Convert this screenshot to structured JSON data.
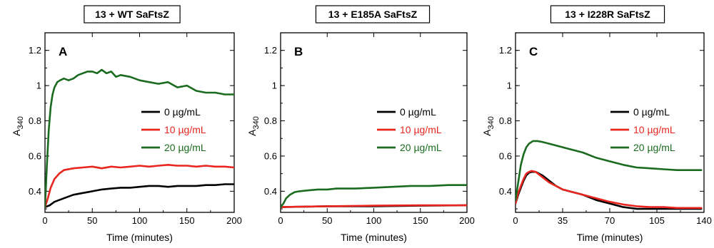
{
  "chart_data": [
    {
      "type": "line",
      "title": "13 + WT SaFtsZ",
      "panel_label": "A",
      "xlabel": "Time (minutes)",
      "ylabel_main": "A",
      "ylabel_sub": "340",
      "xlim": [
        0,
        200
      ],
      "ylim": [
        0.28,
        1.3
      ],
      "xticks": [
        0,
        50,
        100,
        150,
        200
      ],
      "yticks": [
        0.4,
        0.6,
        0.8,
        1.0,
        1.2
      ],
      "ytick_labels": [
        "0.4",
        "0.6",
        "0.8",
        "1",
        "1.2"
      ],
      "series": [
        {
          "name": "0 µg/mL",
          "color": "#000000",
          "x": [
            0,
            5,
            10,
            20,
            30,
            40,
            50,
            60,
            70,
            80,
            90,
            100,
            110,
            120,
            130,
            140,
            150,
            160,
            170,
            180,
            190,
            200
          ],
          "y": [
            0.31,
            0.32,
            0.34,
            0.36,
            0.38,
            0.39,
            0.4,
            0.41,
            0.415,
            0.42,
            0.42,
            0.425,
            0.43,
            0.43,
            0.425,
            0.43,
            0.43,
            0.43,
            0.435,
            0.435,
            0.44,
            0.44
          ]
        },
        {
          "name": "10 µg/mL",
          "color": "#e8261f",
          "x": [
            0,
            3,
            6,
            10,
            15,
            20,
            30,
            40,
            50,
            60,
            70,
            80,
            90,
            100,
            110,
            120,
            130,
            140,
            150,
            160,
            170,
            180,
            190,
            200
          ],
          "y": [
            0.31,
            0.36,
            0.42,
            0.47,
            0.5,
            0.52,
            0.53,
            0.535,
            0.54,
            0.53,
            0.54,
            0.535,
            0.54,
            0.545,
            0.54,
            0.545,
            0.55,
            0.545,
            0.545,
            0.54,
            0.545,
            0.54,
            0.54,
            0.535
          ]
        },
        {
          "name": "20 µg/mL",
          "color": "#1a6b1f",
          "x": [
            0,
            2,
            4,
            6,
            8,
            10,
            13,
            16,
            20,
            25,
            30,
            35,
            40,
            45,
            50,
            55,
            60,
            65,
            70,
            75,
            80,
            90,
            100,
            110,
            120,
            130,
            140,
            150,
            160,
            170,
            180,
            190,
            200
          ],
          "y": [
            0.31,
            0.55,
            0.75,
            0.88,
            0.95,
            0.99,
            1.02,
            1.03,
            1.04,
            1.03,
            1.04,
            1.06,
            1.07,
            1.08,
            1.08,
            1.07,
            1.09,
            1.07,
            1.08,
            1.05,
            1.06,
            1.05,
            1.03,
            1.02,
            1.01,
            1.02,
            0.99,
            1.0,
            0.97,
            0.96,
            0.96,
            0.95,
            0.95
          ]
        }
      ]
    },
    {
      "type": "line",
      "title": "13 + E185A SaFtsZ",
      "panel_label": "B",
      "xlabel": "Time (minutes)",
      "ylabel_main": "A",
      "ylabel_sub": "340",
      "xlim": [
        0,
        200
      ],
      "ylim": [
        0.28,
        1.3
      ],
      "xticks": [
        0,
        50,
        100,
        150,
        200
      ],
      "yticks": [
        0.4,
        0.6,
        0.8,
        1.0,
        1.2
      ],
      "ytick_labels": [
        "0.4",
        "0.6",
        "0.8",
        "1",
        "1.2"
      ],
      "series": [
        {
          "name": "0 µg/mL",
          "color": "#000000",
          "x": [
            0,
            50,
            100,
            150,
            200
          ],
          "y": [
            0.31,
            0.315,
            0.315,
            0.318,
            0.32
          ]
        },
        {
          "name": "10 µg/mL",
          "color": "#e8261f",
          "x": [
            0,
            50,
            100,
            150,
            200
          ],
          "y": [
            0.31,
            0.315,
            0.318,
            0.32,
            0.32
          ]
        },
        {
          "name": "20 µg/mL",
          "color": "#1a6b1f",
          "x": [
            0,
            3,
            6,
            10,
            15,
            20,
            30,
            40,
            50,
            60,
            80,
            100,
            120,
            140,
            160,
            180,
            200
          ],
          "y": [
            0.31,
            0.33,
            0.36,
            0.38,
            0.395,
            0.4,
            0.405,
            0.41,
            0.41,
            0.415,
            0.415,
            0.42,
            0.425,
            0.43,
            0.43,
            0.435,
            0.435
          ]
        }
      ]
    },
    {
      "type": "line",
      "title": "13 + I228R SaFtsZ",
      "panel_label": "C",
      "xlabel": "Time (minutes)",
      "ylabel_main": "A",
      "ylabel_sub": "340",
      "xlim": [
        0,
        140
      ],
      "ylim": [
        0.28,
        1.3
      ],
      "xticks": [
        0,
        35,
        70,
        105,
        140
      ],
      "yticks": [
        0.4,
        0.6,
        0.8,
        1.0,
        1.2
      ],
      "ytick_labels": [
        "0.4",
        "0.6",
        "0.8",
        "1",
        "1.2"
      ],
      "series": [
        {
          "name": "0 µg/mL",
          "color": "#000000",
          "x": [
            0,
            2,
            4,
            6,
            8,
            10,
            12,
            15,
            20,
            25,
            30,
            35,
            40,
            50,
            60,
            70,
            80,
            90,
            100,
            110,
            120,
            130,
            138
          ],
          "y": [
            0.33,
            0.38,
            0.42,
            0.46,
            0.49,
            0.505,
            0.51,
            0.51,
            0.49,
            0.46,
            0.43,
            0.41,
            0.4,
            0.38,
            0.35,
            0.33,
            0.31,
            0.3,
            0.3,
            0.3,
            0.3,
            0.3,
            0.3
          ]
        },
        {
          "name": "10 µg/mL",
          "color": "#e8261f",
          "x": [
            0,
            2,
            4,
            6,
            8,
            10,
            12,
            15,
            20,
            25,
            30,
            35,
            40,
            50,
            60,
            70,
            80,
            90,
            100,
            110,
            120,
            130,
            138
          ],
          "y": [
            0.33,
            0.39,
            0.43,
            0.47,
            0.5,
            0.51,
            0.515,
            0.51,
            0.48,
            0.45,
            0.43,
            0.41,
            0.4,
            0.38,
            0.36,
            0.34,
            0.325,
            0.315,
            0.31,
            0.31,
            0.305,
            0.305,
            0.305
          ]
        },
        {
          "name": "20 µg/mL",
          "color": "#1a6b1f",
          "x": [
            0,
            2,
            4,
            6,
            8,
            10,
            13,
            16,
            20,
            25,
            30,
            35,
            40,
            50,
            60,
            70,
            80,
            90,
            100,
            110,
            120,
            130,
            138
          ],
          "y": [
            0.35,
            0.45,
            0.55,
            0.61,
            0.65,
            0.67,
            0.685,
            0.685,
            0.68,
            0.67,
            0.66,
            0.65,
            0.64,
            0.62,
            0.59,
            0.57,
            0.55,
            0.535,
            0.53,
            0.525,
            0.52,
            0.52,
            0.52
          ]
        }
      ]
    }
  ]
}
